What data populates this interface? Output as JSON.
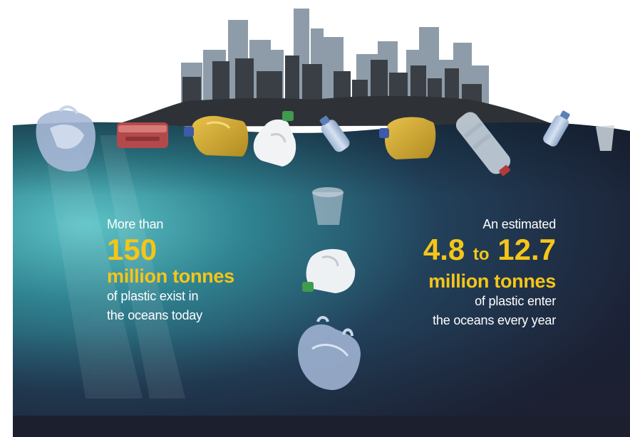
{
  "colors": {
    "water_deep": "#1d2338",
    "water_light": "#4fb6bd",
    "highlight_yellow": "#f5c518",
    "skyline_dark": "#353a40",
    "skyline_light": "#8a9aa6",
    "bottom_band": "#1b1f2e"
  },
  "left_stat": {
    "intro": "More than",
    "number": "150",
    "unit": "million tonnes",
    "desc_line1": "of plastic exist in",
    "desc_line2": "the oceans today"
  },
  "right_stat": {
    "intro": "An estimated",
    "number_low": "4.8",
    "connector": "to",
    "number_high": "12.7",
    "unit": "million tonnes",
    "desc_line1": "of plastic enter",
    "desc_line2": "the oceans every year"
  },
  "icons": [
    "city-skyline-icon",
    "plastic-bag-icon",
    "food-container-icon",
    "detergent-jug-icon",
    "milk-jug-icon",
    "water-bottle-icon",
    "plastic-cup-icon"
  ]
}
